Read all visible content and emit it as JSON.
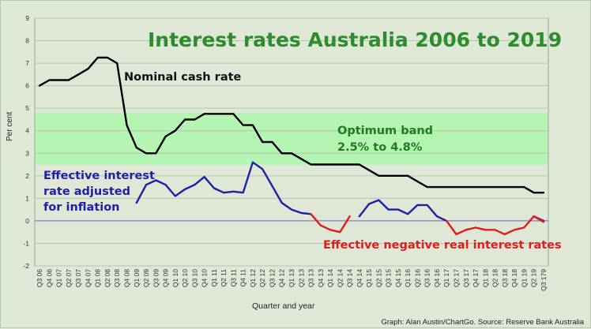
{
  "chart_data": {
    "type": "line",
    "title": "Interest rates Australia 2006 to 2019",
    "xlabel": "Quarter and year",
    "ylabel": "Per cent",
    "ylim": [
      -2,
      9
    ],
    "yticks": [
      -2,
      -1,
      0,
      1,
      2,
      3,
      4,
      5,
      6,
      7,
      8,
      9
    ],
    "grid": true,
    "categories": [
      "Q3 06",
      "Q4 06",
      "Q1 07",
      "Q2 07",
      "Q3 07",
      "Q4 07",
      "Q1 08",
      "Q2 08",
      "Q3 08",
      "Q4 08",
      "Q1 09",
      "Q2 09",
      "Q3 09",
      "Q4 09",
      "Q1 10",
      "Q2 10",
      "Q3 10",
      "Q4 10",
      "Q1 11",
      "Q2 11",
      "Q3 11",
      "Q4 11",
      "Q1 12",
      "Q2 12",
      "Q3 12",
      "Q4 12",
      "Q1 13",
      "Q2 13",
      "Q3 13",
      "Q4 13",
      "Q1 14",
      "Q2 14",
      "Q3 14",
      "Q4 14",
      "Q1 15",
      "Q2 15",
      "Q3 15",
      "Q4 15",
      "Q1 16",
      "Q2 16",
      "Q3 16",
      "Q4 16",
      "Q1 17",
      "Q2 17",
      "Q3 17",
      "Q4 17",
      "Q1 18",
      "Q2 18",
      "Q3 18",
      "Q4 18",
      "Q1 19",
      "Q2 19",
      "Q3 179"
    ],
    "band": {
      "label_line1": "Optimum band",
      "label_line2": "2.5% to 4.8%",
      "low": 2.5,
      "high": 4.8,
      "color": "#b4f5b4"
    },
    "zero_line_color": "#7b5fb0",
    "series": [
      {
        "name": "Nominal cash rate",
        "color": "#000000",
        "values": [
          6.0,
          6.25,
          6.25,
          6.25,
          6.5,
          6.75,
          7.25,
          7.25,
          7.0,
          4.25,
          3.25,
          3.0,
          3.0,
          3.75,
          4.0,
          4.5,
          4.5,
          4.75,
          4.75,
          4.75,
          4.75,
          4.25,
          4.25,
          3.5,
          3.5,
          3.0,
          3.0,
          2.75,
          2.5,
          2.5,
          2.5,
          2.5,
          2.5,
          2.5,
          2.25,
          2.0,
          2.0,
          2.0,
          2.0,
          1.75,
          1.5,
          1.5,
          1.5,
          1.5,
          1.5,
          1.5,
          1.5,
          1.5,
          1.5,
          1.5,
          1.5,
          1.25,
          1.25
        ]
      },
      {
        "name": "Effective interest rate adjusted for inflation",
        "label_line1": "Effective interest",
        "label_line2": "rate adjusted",
        "label_line3": "for inflation",
        "color": "#1f1fa8",
        "values": [
          null,
          null,
          null,
          null,
          null,
          null,
          null,
          null,
          null,
          null,
          0.8,
          1.6,
          1.8,
          1.6,
          1.1,
          1.4,
          1.6,
          1.95,
          1.45,
          1.25,
          1.3,
          1.25,
          2.6,
          2.3,
          1.55,
          0.8,
          0.5,
          0.35,
          0.3,
          null,
          null,
          null,
          null,
          0.2,
          0.75,
          0.92,
          0.5,
          0.5,
          0.3,
          0.7,
          0.7,
          0.2,
          0.0,
          null,
          null,
          null,
          null,
          null,
          null,
          null,
          null,
          0.2,
          0.0
        ]
      },
      {
        "name": "Effective negative real interest rates",
        "color": "#e01c1c",
        "values": [
          null,
          null,
          null,
          null,
          null,
          null,
          null,
          null,
          null,
          null,
          null,
          null,
          null,
          null,
          null,
          null,
          null,
          null,
          null,
          null,
          null,
          null,
          null,
          null,
          null,
          null,
          null,
          null,
          0.3,
          -0.2,
          -0.4,
          -0.5,
          0.2,
          null,
          null,
          null,
          null,
          null,
          null,
          null,
          null,
          null,
          0.0,
          -0.6,
          -0.4,
          -0.3,
          -0.4,
          -0.4,
          -0.6,
          -0.4,
          -0.3,
          0.2,
          -0.05
        ]
      }
    ]
  },
  "annotations": {
    "negative_label": "Effective negative real interest rates"
  },
  "source": "Graph: Alan Austin/ChartGo. Source: Reserve Bank Australia"
}
